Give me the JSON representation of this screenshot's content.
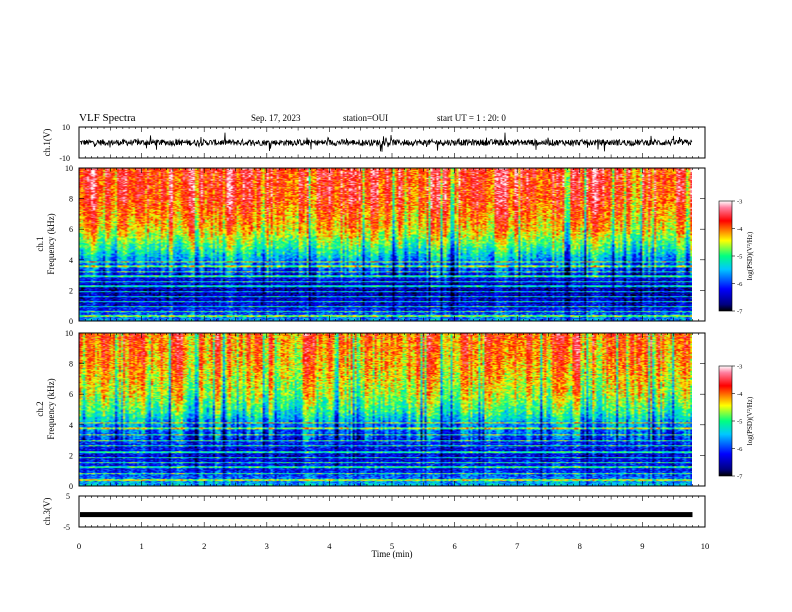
{
  "header": {
    "title": "VLF Spectra",
    "date": "Sep. 17, 2023",
    "station": "station=OUI",
    "start_ut": "start UT =  1 : 20: 0"
  },
  "chart_data": [
    {
      "type": "line",
      "name": "waveform-ch1",
      "ylabel": "ch.1(V)",
      "ylim": [
        -10,
        10
      ],
      "yticks": [
        -10,
        10
      ],
      "xlim": [
        0,
        10
      ],
      "data_end_min": 9.8,
      "baseline_v": 0,
      "noise_amplitude_v": 4,
      "color": "#000000"
    },
    {
      "type": "heatmap",
      "name": "spectrogram-ch1",
      "ylabel": [
        "ch.1",
        "Frequency (kHz)"
      ],
      "ylim": [
        0,
        10
      ],
      "yticks": [
        0,
        2,
        4,
        6,
        8,
        10
      ],
      "xlim": [
        0,
        10
      ],
      "data_end_min": 9.8,
      "colorbar": {
        "label": "log(PSD)(V²/Hz)",
        "range": [
          -7,
          -3
        ],
        "ticks": [
          -3,
          -4,
          -5,
          -6,
          -7
        ]
      },
      "profile_khz": [
        0,
        1,
        2,
        3,
        4,
        4.8,
        6,
        8,
        10
      ],
      "profile_log_psd": [
        -5.6,
        -6.3,
        -6.5,
        -6.1,
        -5.5,
        -4.9,
        -4.2,
        -3.7,
        -3.6
      ],
      "noise_lines_khz": [
        0.3,
        0.6,
        0.9,
        1.25,
        1.55,
        1.9,
        2.25,
        2.55,
        2.9,
        3.2,
        3.55,
        3.85
      ]
    },
    {
      "type": "heatmap",
      "name": "spectrogram-ch2",
      "ylabel": [
        "ch.2",
        "Frequency (kHz)"
      ],
      "ylim": [
        0,
        10
      ],
      "yticks": [
        0,
        2,
        4,
        6,
        8,
        10
      ],
      "xlim": [
        0,
        10
      ],
      "data_end_min": 9.8,
      "colorbar": {
        "label": "log(PSD)(V²/Hz)",
        "range": [
          -7,
          -3
        ],
        "ticks": [
          -3,
          -4,
          -5,
          -6,
          -7
        ]
      },
      "profile_khz": [
        0,
        1,
        2,
        3,
        4,
        4.8,
        6,
        8,
        10
      ],
      "profile_log_psd": [
        -5.4,
        -6.1,
        -6.3,
        -6.0,
        -5.6,
        -5.0,
        -4.5,
        -4.1,
        -3.9
      ],
      "noise_lines_khz": [
        0.35,
        0.8,
        1.2,
        1.5,
        1.85,
        2.2,
        2.6,
        2.95,
        3.35,
        3.75,
        4.1
      ]
    },
    {
      "type": "line",
      "name": "waveform-ch3",
      "ylabel": "ch.3(V)",
      "ylim": [
        -5,
        5
      ],
      "yticks": [
        -5,
        5
      ],
      "xlim": [
        0,
        10
      ],
      "data_end_min": 9.8,
      "baseline_v": -1.0,
      "color": "#000000"
    }
  ],
  "xaxis": {
    "label": "Time (min)",
    "range": [
      0,
      10
    ],
    "ticks": [
      "0",
      "1",
      "2",
      "3",
      "4",
      "5",
      "6",
      "7",
      "8",
      "9",
      "10"
    ]
  }
}
